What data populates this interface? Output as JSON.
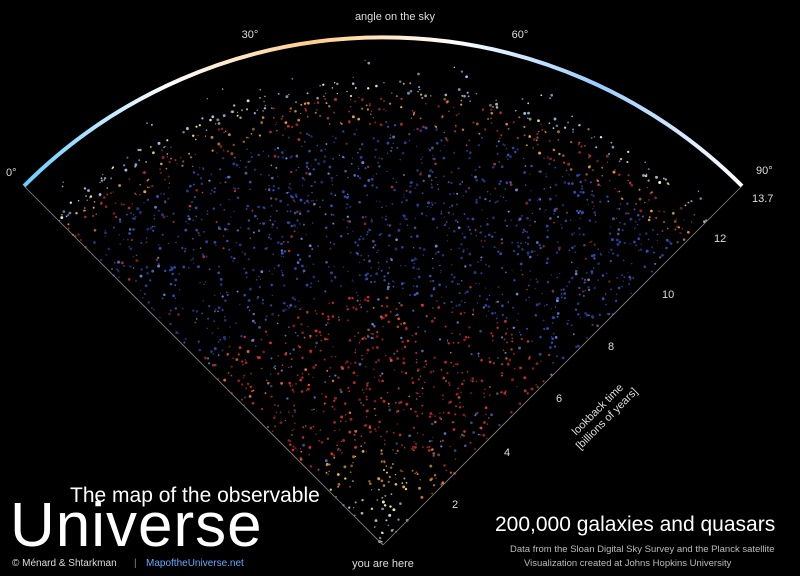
{
  "header": {
    "arc_label": "angle on the sky",
    "angles": [
      "0°",
      "30°",
      "60°",
      "90°"
    ]
  },
  "lookback": {
    "label_line1": "lookback time",
    "label_line2": "[billions of years]",
    "ticks": [
      "13.7",
      "12",
      "10",
      "8",
      "6",
      "4",
      "2"
    ],
    "origin": "you are here"
  },
  "title": {
    "line1": "The map of the observable",
    "line2": "Universe",
    "credit": "© Ménard & Shtarkman",
    "site": "MapoftheUniverse.net"
  },
  "caption": {
    "headline": "200,000 galaxies and quasars",
    "line1": "Data from the Sloan Digital Sky Survey and the Planck satellite",
    "line2": "Visualization created at Johns Hopkins University"
  }
}
